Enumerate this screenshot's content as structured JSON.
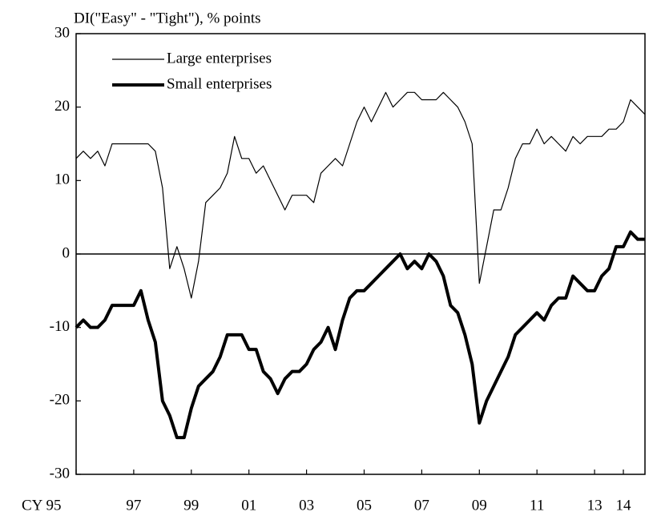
{
  "chart_data": {
    "type": "line",
    "y_axis_label": "DI(\"Easy\" - \"Tight\"), % points",
    "categories": [
      "CY 95",
      null,
      null,
      null,
      null,
      null,
      null,
      null,
      "97",
      null,
      null,
      null,
      null,
      null,
      null,
      null,
      "99",
      null,
      null,
      null,
      null,
      null,
      null,
      null,
      "01",
      null,
      null,
      null,
      null,
      null,
      null,
      null,
      "03",
      null,
      null,
      null,
      null,
      null,
      null,
      null,
      "05",
      null,
      null,
      null,
      null,
      null,
      null,
      null,
      "07",
      null,
      null,
      null,
      null,
      null,
      null,
      null,
      "09",
      null,
      null,
      null,
      null,
      null,
      null,
      null,
      "11",
      null,
      null,
      null,
      null,
      null,
      null,
      null,
      "13",
      null,
      null,
      null,
      "14",
      null,
      null,
      null
    ],
    "series": [
      {
        "name": "Large enterprises",
        "color": "#000000",
        "width": 1.2,
        "values": [
          13,
          14,
          13,
          14,
          12,
          15,
          15,
          15,
          15,
          15,
          15,
          14,
          9,
          -2,
          1,
          -2,
          -6,
          -1,
          7,
          8,
          9,
          11,
          16,
          13,
          13,
          11,
          12,
          10,
          8,
          6,
          8,
          8,
          8,
          7,
          11,
          12,
          13,
          12,
          15,
          18,
          20,
          18,
          20,
          22,
          20,
          21,
          22,
          22,
          21,
          21,
          21,
          22,
          21,
          20,
          18,
          15,
          -4,
          1,
          6,
          6,
          9,
          13,
          15,
          15,
          17,
          15,
          16,
          15,
          14,
          16,
          15,
          16,
          16,
          16,
          17,
          17,
          18,
          21,
          20,
          19
        ]
      },
      {
        "name": "Small enterprises",
        "color": "#000000",
        "width": 4,
        "values": [
          -10,
          -9,
          -10,
          -10,
          -9,
          -7,
          -7,
          -7,
          -7,
          -5,
          -9,
          -12,
          -20,
          -22,
          -25,
          -25,
          -21,
          -18,
          -17,
          -16,
          -14,
          -11,
          -11,
          -11,
          -13,
          -13,
          -16,
          -17,
          -19,
          -17,
          -16,
          -16,
          -15,
          -13,
          -12,
          -10,
          -13,
          -9,
          -6,
          -5,
          -5,
          -4,
          -3,
          -2,
          -1,
          0,
          -2,
          -1,
          -2,
          0,
          -1,
          -3,
          -7,
          -8,
          -11,
          -15,
          -23,
          -20,
          -18,
          -16,
          -14,
          -11,
          -10,
          -9,
          -8,
          -9,
          -7,
          -6,
          -6,
          -3,
          -4,
          -5,
          -5,
          -3,
          -2,
          1,
          1,
          3,
          2,
          2
        ]
      }
    ],
    "ylim": [
      -30,
      30
    ],
    "yticks": [
      -30,
      -20,
      -10,
      0,
      10,
      20,
      30
    ],
    "zero_line": true,
    "legend": "upper left"
  }
}
